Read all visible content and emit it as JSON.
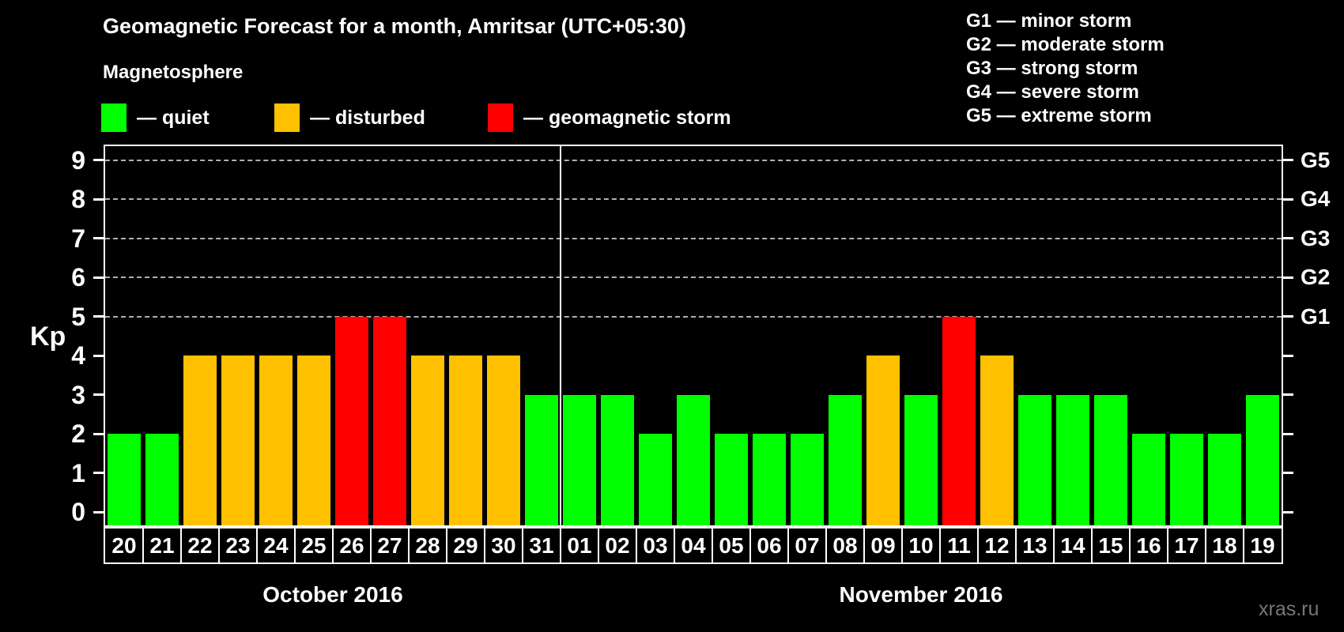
{
  "title": "Geomagnetic Forecast for a month, Amritsar (UTC+05:30)",
  "subtitle": "Magnetosphere",
  "legend": {
    "items": [
      {
        "key": "quiet",
        "label": "— quiet",
        "color": "#00ff00"
      },
      {
        "key": "disturbed",
        "label": "— disturbed",
        "color": "#ffc000"
      },
      {
        "key": "storm",
        "label": "— geomagnetic storm",
        "color": "#ff0000"
      }
    ]
  },
  "storm_scale_legend": {
    "items": [
      "G1 — minor storm",
      "G2 — moderate storm",
      "G3 — strong storm",
      "G4 — severe storm",
      "G5 — extreme storm"
    ]
  },
  "watermark": "xras.ru",
  "chart_data": {
    "type": "bar",
    "title": "Geomagnetic Forecast for a month, Amritsar (UTC+05:30)",
    "xlabel": "",
    "ylabel": "Kp",
    "ylim": [
      0,
      9
    ],
    "yticks": [
      0,
      1,
      2,
      3,
      4,
      5,
      6,
      7,
      8,
      9
    ],
    "gridlines_y": [
      5,
      6,
      7,
      8,
      9
    ],
    "grid": "horizontal dashed at storm threshold levels only",
    "legend_position": "top-left",
    "right_axis": {
      "labels": [
        "G1",
        "G2",
        "G3",
        "G4",
        "G5"
      ],
      "positions": [
        5,
        6,
        7,
        8,
        9
      ]
    },
    "groups": [
      {
        "month": "October 2016",
        "days": [
          "20",
          "21",
          "22",
          "23",
          "24",
          "25",
          "26",
          "27",
          "28",
          "29",
          "30",
          "31"
        ],
        "kp": [
          2,
          2,
          4,
          4,
          4,
          4,
          5,
          5,
          4,
          4,
          4,
          3
        ],
        "status": [
          "quiet",
          "quiet",
          "disturbed",
          "disturbed",
          "disturbed",
          "disturbed",
          "storm",
          "storm",
          "disturbed",
          "disturbed",
          "disturbed",
          "quiet"
        ]
      },
      {
        "month": "November 2016",
        "days": [
          "01",
          "02",
          "03",
          "04",
          "05",
          "06",
          "07",
          "08",
          "09",
          "10",
          "11",
          "12",
          "13",
          "14",
          "15",
          "16",
          "17",
          "18",
          "19"
        ],
        "kp": [
          3,
          3,
          2,
          3,
          2,
          2,
          2,
          3,
          4,
          3,
          5,
          4,
          3,
          3,
          3,
          2,
          2,
          2,
          3
        ],
        "status": [
          "quiet",
          "quiet",
          "quiet",
          "quiet",
          "quiet",
          "quiet",
          "quiet",
          "quiet",
          "disturbed",
          "quiet",
          "storm",
          "disturbed",
          "quiet",
          "quiet",
          "quiet",
          "quiet",
          "quiet",
          "quiet",
          "quiet"
        ]
      }
    ]
  }
}
